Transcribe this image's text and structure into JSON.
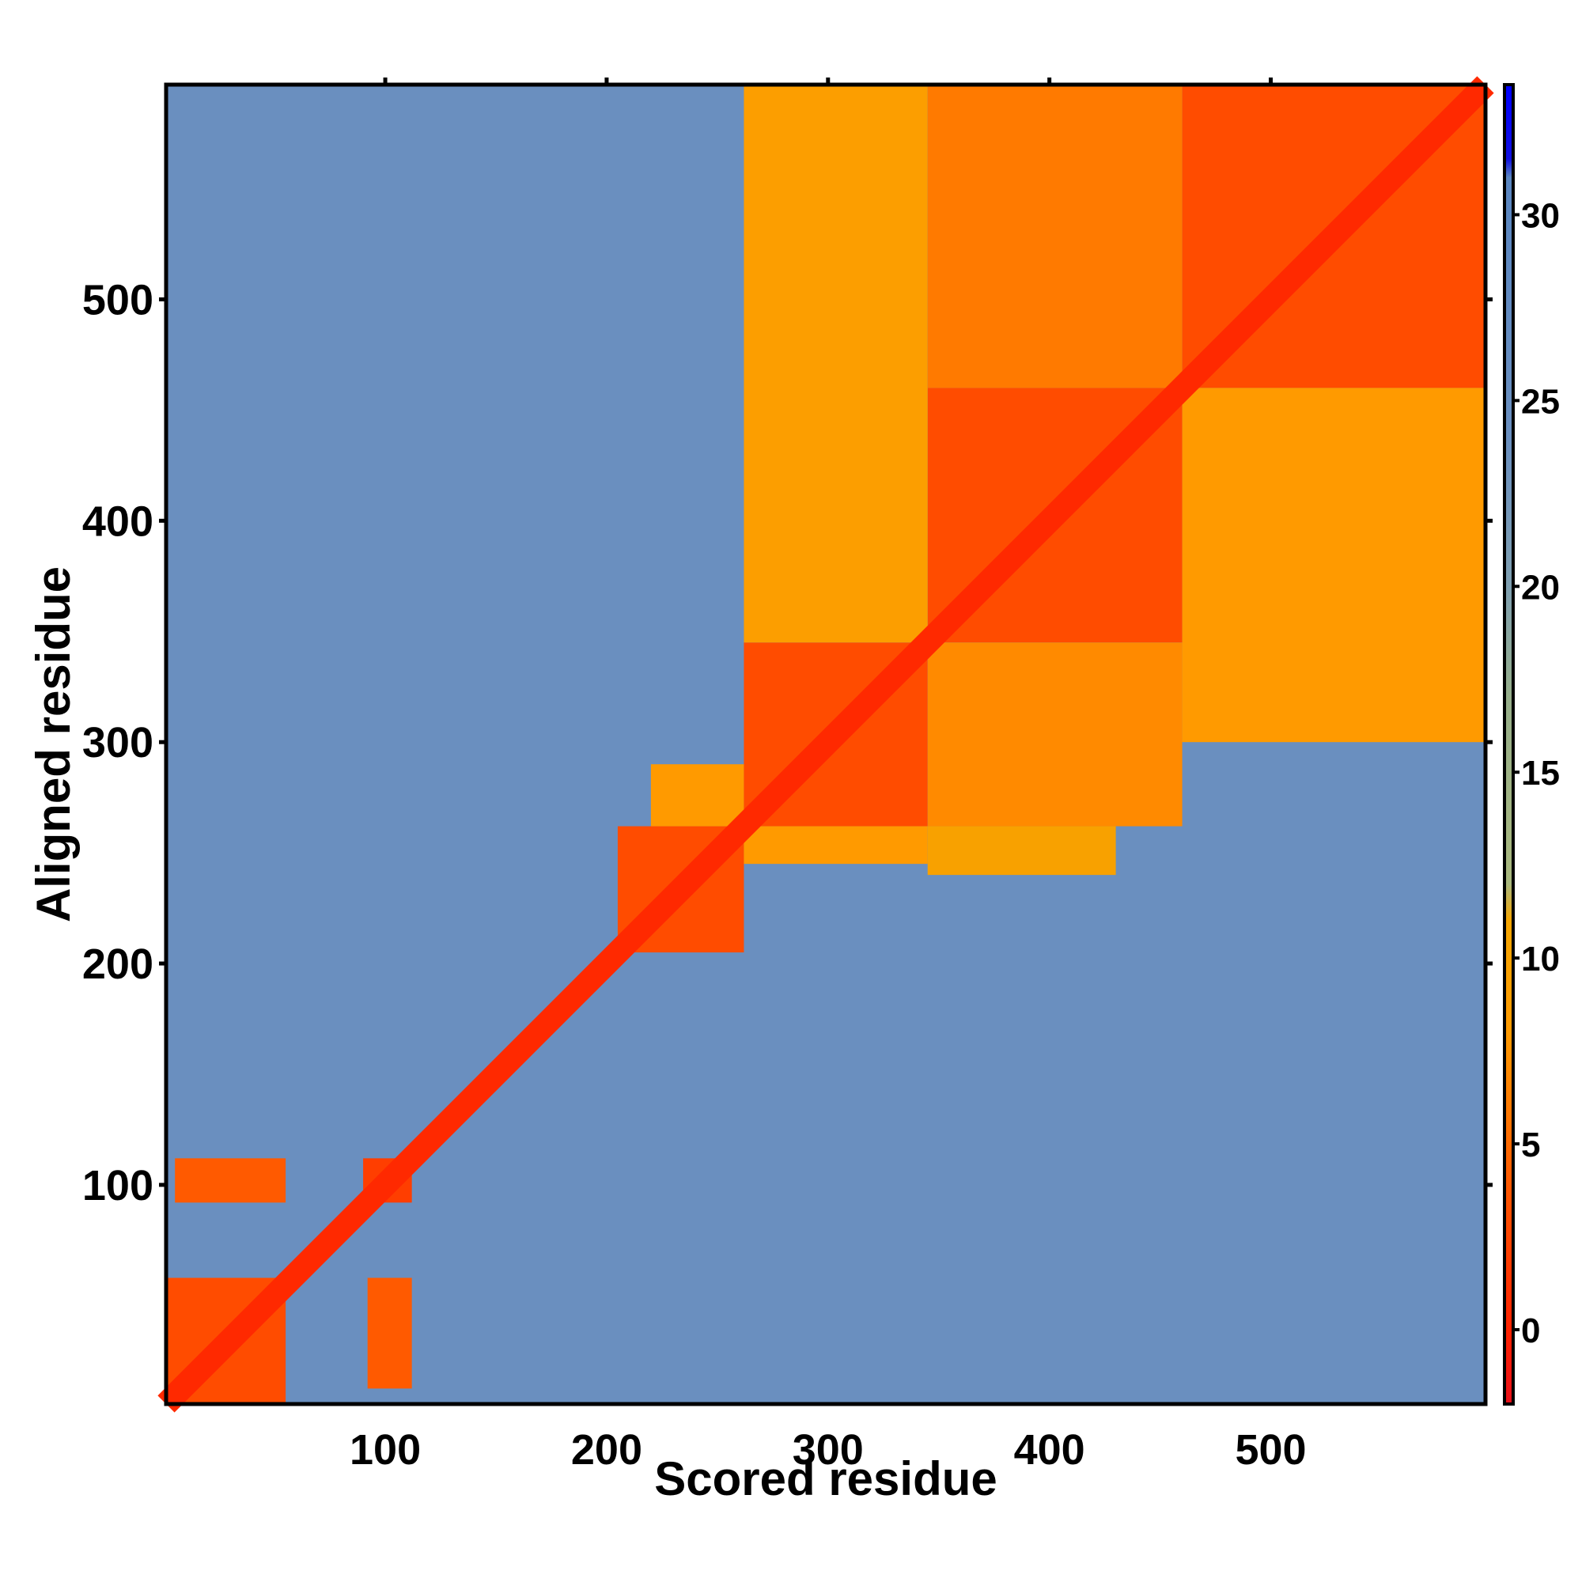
{
  "chart_data": {
    "type": "heatmap",
    "title": "",
    "xlabel": "Scored residue",
    "ylabel": "Aligned residue",
    "n_residues": 597,
    "xlim": [
      1,
      597
    ],
    "ylim": [
      1,
      597
    ],
    "x_ticks": [
      100,
      200,
      300,
      400,
      500
    ],
    "y_ticks": [
      100,
      200,
      300,
      400,
      500
    ],
    "colorbar": {
      "ticks": [
        0,
        5,
        10,
        15,
        20,
        25,
        30
      ],
      "range": [
        -2,
        33.5
      ],
      "stops": [
        {
          "value": -2,
          "color": "#e8101a"
        },
        {
          "value": 0,
          "color": "#ff2200"
        },
        {
          "value": 4,
          "color": "#ff5a00"
        },
        {
          "value": 8,
          "color": "#ff9a00"
        },
        {
          "value": 11,
          "color": "#f5a500"
        },
        {
          "value": 12,
          "color": "#a9b87e"
        },
        {
          "value": 17,
          "color": "#96ae8a"
        },
        {
          "value": 20,
          "color": "#7f9fb0"
        },
        {
          "value": 24,
          "color": "#6a8fbf"
        },
        {
          "value": 31,
          "color": "#5a86c0"
        },
        {
          "value": 31.5,
          "color": "#1010e0"
        },
        {
          "value": 33.5,
          "color": "#0000ff"
        }
      ]
    },
    "background_error": 24,
    "diagonal_error": 0.5,
    "domains": [
      {
        "x": [
          1,
          55
        ],
        "y": [
          1,
          58
        ],
        "error": 3
      },
      {
        "x": [
          5,
          55
        ],
        "y": [
          92,
          112
        ],
        "error": 4
      },
      {
        "x": [
          90,
          112
        ],
        "y": [
          92,
          112
        ],
        "error": 2
      },
      {
        "x": [
          92,
          112
        ],
        "y": [
          8,
          58
        ],
        "error": 4
      },
      {
        "x": [
          205,
          262
        ],
        "y": [
          205,
          262
        ],
        "error": 3
      },
      {
        "x": [
          220,
          262
        ],
        "y": [
          262,
          290
        ],
        "error": 8
      },
      {
        "x": [
          262,
          345
        ],
        "y": [
          262,
          345
        ],
        "error": 3
      },
      {
        "x": [
          262,
          345
        ],
        "y": [
          245,
          262
        ],
        "error": 8
      },
      {
        "x": [
          345,
          460
        ],
        "y": [
          345,
          460
        ],
        "error": 3
      },
      {
        "x": [
          460,
          597
        ],
        "y": [
          460,
          597
        ],
        "error": 3
      },
      {
        "x": [
          262,
          345
        ],
        "y": [
          345,
          597
        ],
        "error": 9
      },
      {
        "x": [
          345,
          460
        ],
        "y": [
          262,
          345
        ],
        "error": 7
      },
      {
        "x": [
          345,
          460
        ],
        "y": [
          460,
          597
        ],
        "error": 6
      },
      {
        "x": [
          460,
          597
        ],
        "y": [
          300,
          460
        ],
        "error": 8
      },
      {
        "x": [
          345,
          430
        ],
        "y": [
          240,
          262
        ],
        "error": 10
      }
    ]
  }
}
